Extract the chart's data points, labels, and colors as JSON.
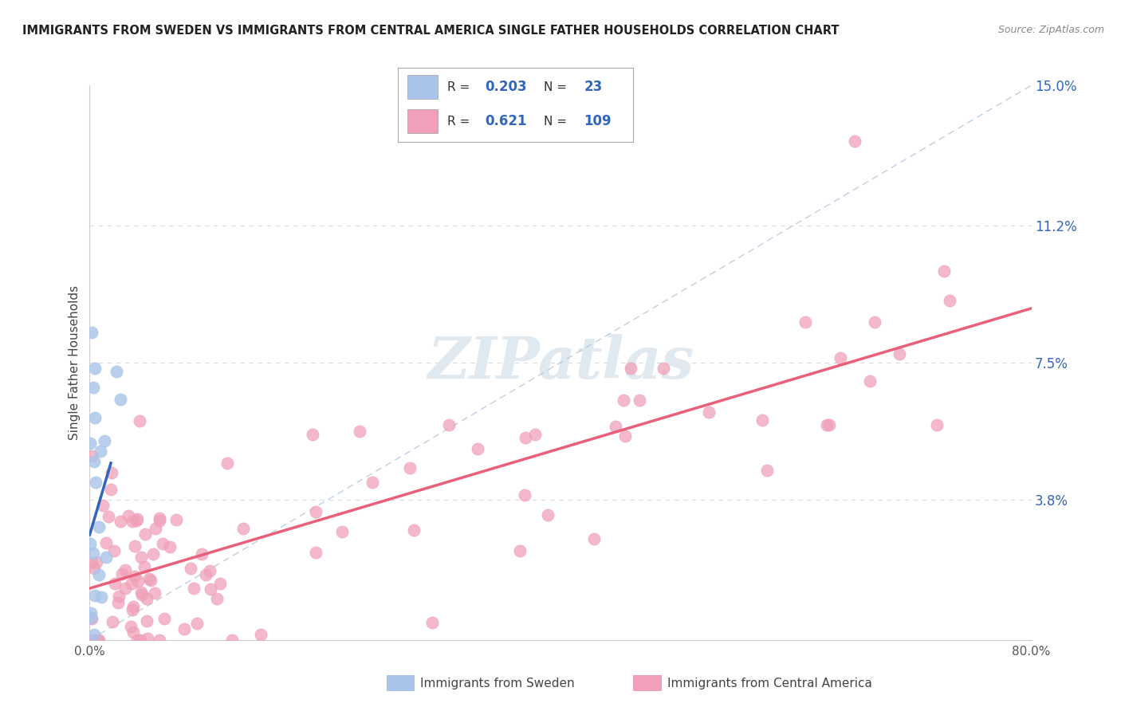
{
  "title": "IMMIGRANTS FROM SWEDEN VS IMMIGRANTS FROM CENTRAL AMERICA SINGLE FATHER HOUSEHOLDS CORRELATION CHART",
  "source": "Source: ZipAtlas.com",
  "ylabel": "Single Father Households",
  "xlim": [
    0.0,
    80.0
  ],
  "ylim": [
    0.0,
    15.0
  ],
  "right_yticks": [
    0.0,
    3.8,
    7.5,
    11.2,
    15.0
  ],
  "right_ytick_labels": [
    "",
    "3.8%",
    "7.5%",
    "11.2%",
    "15.0%"
  ],
  "xtick_show": [
    0.0,
    80.0
  ],
  "xtick_labels": [
    "0.0%",
    "80.0%"
  ],
  "legend_r1": "0.203",
  "legend_n1": "23",
  "legend_r2": "0.621",
  "legend_n2": "109",
  "color_sweden": "#a8c4e8",
  "color_central": "#f0a0b8",
  "color_sweden_line": "#3366bb",
  "color_central_line": "#e8607a",
  "color_legend_text_r": "#3366bb",
  "color_legend_text_n": "#3366bb",
  "color_right_axis": "#3366bb",
  "color_grid": "#cccccc",
  "color_ref_line": "#b0c4d8",
  "background": "#ffffff",
  "watermark_text": "ZIPatlas",
  "watermark_color": "#e0e8f0",
  "bottom_legend_sweden": "Immigrants from Sweden",
  "bottom_legend_central": "Immigrants from Central America",
  "sweden_seed": 42,
  "central_seed": 7,
  "grid_yticks": [
    3.8,
    7.5,
    11.2
  ]
}
